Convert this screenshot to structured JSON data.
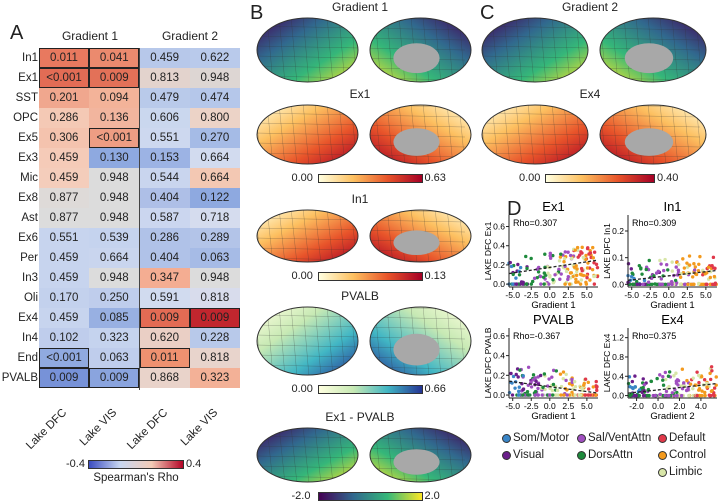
{
  "panel_labels": {
    "a": "A",
    "b": "B",
    "c": "C",
    "d": "D"
  },
  "chart_data": [
    {
      "type": "heatmap",
      "title": "",
      "column_groups": [
        "Gradient 1",
        "Gradient 2"
      ],
      "columns": [
        "Lake DFC",
        "Lake VIS",
        "Lake DFC",
        "Lake VIS"
      ],
      "rows": [
        "In1",
        "Ex1",
        "SST",
        "OPC",
        "Ex5",
        "Ex3",
        "Mic",
        "Ex8",
        "Ast",
        "Ex6",
        "Per",
        "In3",
        "Oli",
        "Ex4",
        "In4",
        "End",
        "PVALB"
      ],
      "values": [
        [
          "0.011",
          "0.041",
          "0.459",
          "0.622"
        ],
        [
          "<0.001",
          "0.009",
          "0.813",
          "0.948"
        ],
        [
          "0.201",
          "0.094",
          "0.479",
          "0.474"
        ],
        [
          "0.286",
          "0.136",
          "0.606",
          "0.800"
        ],
        [
          "0.306",
          "<0.001",
          "0.551",
          "0.270"
        ],
        [
          "0.459",
          "0.130",
          "0.153",
          "0.664"
        ],
        [
          "0.459",
          "0.948",
          "0.544",
          "0.664"
        ],
        [
          "0.877",
          "0.948",
          "0.404",
          "0.122"
        ],
        [
          "0.877",
          "0.948",
          "0.587",
          "0.718"
        ],
        [
          "0.551",
          "0.539",
          "0.286",
          "0.289"
        ],
        [
          "0.459",
          "0.664",
          "0.404",
          "0.063"
        ],
        [
          "0.459",
          "0.948",
          "0.347",
          "0.948"
        ],
        [
          "0.170",
          "0.250",
          "0.591",
          "0.818"
        ],
        [
          "0.459",
          "0.085",
          "0.009",
          "0.009"
        ],
        [
          "0.102",
          "0.323",
          "0.620",
          "0.228"
        ],
        [
          "<0.001",
          "0.063",
          "0.011",
          "0.818"
        ],
        [
          "0.009",
          "0.009",
          "0.868",
          "0.323"
        ]
      ],
      "cell_colors": [
        [
          "#e8795f",
          "#eb8a6e",
          "#b7c8ea",
          "#b9caeb"
        ],
        [
          "#e26c55",
          "#e37158",
          "#e3d3cd",
          "#ddd6d3"
        ],
        [
          "#f0a78e",
          "#f3b399",
          "#b9caea",
          "#b5c7ea"
        ],
        [
          "#f4c9b5",
          "#f2b59e",
          "#cad7ee",
          "#ecd3c7"
        ],
        [
          "#f4c3ae",
          "#ee9d83",
          "#cdd8ef",
          "#a5bbe6"
        ],
        [
          "#f5cbb8",
          "#8ea9e0",
          "#9cb3e4",
          "#d2dbef"
        ],
        [
          "#f4cdbb",
          "#dcdcdc",
          "#c9d5ee",
          "#f3c8b3"
        ],
        [
          "#dedad8",
          "#dcdcdc",
          "#aebfe7",
          "#8ea9e0"
        ],
        [
          "#dcdcdc",
          "#dcdcdc",
          "#cbd6ef",
          "#d5dcee"
        ],
        [
          "#c7d4ee",
          "#c5d3ee",
          "#b0c2e8",
          "#b3c4e8"
        ],
        [
          "#c7d4ee",
          "#c9d5ee",
          "#b0c2e8",
          "#a6bbe6"
        ],
        [
          "#c7d4ee",
          "#dcdcdc",
          "#f4ad92",
          "#dcdcdc"
        ],
        [
          "#c3d1ed",
          "#bfcdec",
          "#d1dbef",
          "#d8dcec"
        ],
        [
          "#c7d4ee",
          "#98b0e2",
          "#e36b54",
          "#c1262e"
        ],
        [
          "#bfcdec",
          "#c5d3ee",
          "#eacfc5",
          "#b8c9ea"
        ],
        [
          "#90aae0",
          "#bfcdec",
          "#ee9170",
          "#e8d4cc"
        ],
        [
          "#7792d8",
          "#8aa4de",
          "#e9d3ca",
          "#f3b197"
        ]
      ],
      "significant": [
        [
          0,
          0
        ],
        [
          0,
          1
        ],
        [
          1,
          0
        ],
        [
          1,
          1
        ],
        [
          4,
          1
        ],
        [
          13,
          2
        ],
        [
          13,
          3
        ],
        [
          15,
          0
        ],
        [
          15,
          2
        ],
        [
          16,
          0
        ],
        [
          16,
          1
        ]
      ],
      "colorbar": {
        "min": "-0.4",
        "max": "0.4",
        "label": "Spearman's Rho",
        "colors": [
          "#3b4cc0",
          "#c9d7f0",
          "#f2cbb7",
          "#b40426"
        ]
      }
    },
    {
      "type": "scatter",
      "panels": [
        {
          "title": "Ex1",
          "xlabel": "Gradient 1",
          "ylabel": "LAKE DFC Ex1",
          "rho": "Rho=0.307",
          "xlim": [
            -5.5,
            6.5
          ],
          "ylim": [
            -0.03,
            0.72
          ],
          "xticks": [
            "-5.0",
            "-2.5",
            "0.0",
            "2.5",
            "5.0"
          ],
          "xtick_vals": [
            -5,
            -2.5,
            0,
            2.5,
            5
          ],
          "yticks": [
            "0.0",
            "0.2",
            "0.4",
            "0.6"
          ],
          "ytick_vals": [
            0,
            0.2,
            0.4,
            0.6
          ],
          "fit": [
            [
              -5.5,
              0.11
            ],
            [
              6.5,
              0.25
            ]
          ]
        },
        {
          "title": "In1",
          "xlabel": "Gradient 1",
          "ylabel": "LAKE DFC In1",
          "rho": "Rho=0.309",
          "xlim": [
            -5.5,
            6.5
          ],
          "ylim": [
            -0.01,
            0.26
          ],
          "xticks": [
            "-5.0",
            "-2.5",
            "0.0",
            "2.5",
            "5.0"
          ],
          "xtick_vals": [
            -5,
            -2.5,
            0,
            2.5,
            5
          ],
          "yticks": [
            "0.0",
            "0.1",
            "0.2"
          ],
          "ytick_vals": [
            0,
            0.1,
            0.2
          ],
          "fit": [
            [
              -5.5,
              0.015
            ],
            [
              6.5,
              0.052
            ]
          ]
        },
        {
          "title": "PVALB",
          "xlabel": "Gradient 1",
          "ylabel": "LAKE DFC PVALB",
          "rho": "Rho=-0.367",
          "xlim": [
            -5.5,
            6.5
          ],
          "ylim": [
            -0.03,
            0.68
          ],
          "xticks": [
            "-5.0",
            "-2.5",
            "0.0",
            "2.5",
            "5.0"
          ],
          "xtick_vals": [
            -5,
            -2.5,
            0,
            2.5,
            5
          ],
          "yticks": [
            "0.0",
            "0.2",
            "0.4",
            "0.6"
          ],
          "ytick_vals": [
            0,
            0.2,
            0.4,
            0.6
          ],
          "fit": [
            [
              -5.5,
              0.14
            ],
            [
              6.5,
              0.02
            ]
          ]
        },
        {
          "title": "Ex4",
          "xlabel": "Gradient 2",
          "ylabel": "LAKE DFC Ex4",
          "rho": "Rho=0.375",
          "xlim": [
            -2.8,
            5.5
          ],
          "ylim": [
            -0.05,
            1.4
          ],
          "xticks": [
            "-2.0",
            "0.0",
            "2.0",
            "4.0"
          ],
          "xtick_vals": [
            -2,
            0,
            2,
            4
          ],
          "yticks": [
            "0.0",
            "0.4",
            "0.8",
            "1.2"
          ],
          "ytick_vals": [
            0,
            0.4,
            0.8,
            1.2
          ],
          "fit": [
            [
              -2.8,
              0.05
            ],
            [
              5.5,
              0.25
            ]
          ]
        }
      ],
      "legend": [
        {
          "label": "Som/Motor",
          "color": "#3a86c8"
        },
        {
          "label": "Sal/VentAttn",
          "color": "#a04fc0"
        },
        {
          "label": "Default",
          "color": "#e0384a"
        },
        {
          "label": "Visual",
          "color": "#6a1e8a"
        },
        {
          "label": "DorsAttn",
          "color": "#1e8a3c"
        },
        {
          "label": "Control",
          "color": "#f39a1e"
        },
        {
          "label": "Limbic",
          "color": "#d8e6a8"
        }
      ]
    }
  ],
  "brain_maps": {
    "b": [
      {
        "title": "Gradient 1",
        "min": "",
        "max": "",
        "colors": [
          "#440154",
          "#31688e",
          "#35b779",
          "#fde725"
        ]
      },
      {
        "title": "Ex1",
        "min": "0.00",
        "max": "0.63",
        "colors": [
          "#ffffe0",
          "#fdc060",
          "#e8542a",
          "#a50026"
        ]
      },
      {
        "title": "In1",
        "min": "0.00",
        "max": "0.13",
        "colors": [
          "#ffffe0",
          "#fdc060",
          "#e8542a",
          "#a50026"
        ]
      },
      {
        "title": "PVALB",
        "min": "0.00",
        "max": "0.66",
        "colors": [
          "#ffffe0",
          "#c7e9b4",
          "#41b6c4",
          "#253494"
        ]
      },
      {
        "title": "Ex1 - PVALB",
        "min": "-2.0",
        "max": "2.0",
        "colors": [
          "#440154",
          "#31688e",
          "#35b779",
          "#fde725"
        ]
      }
    ],
    "c": [
      {
        "title": "Gradient 2",
        "min": "",
        "max": "",
        "colors": [
          "#440154",
          "#31688e",
          "#35b779",
          "#fde725"
        ]
      },
      {
        "title": "Ex4",
        "min": "0.00",
        "max": "0.40",
        "colors": [
          "#ffffe0",
          "#fdc060",
          "#e8542a",
          "#a50026"
        ]
      }
    ]
  }
}
